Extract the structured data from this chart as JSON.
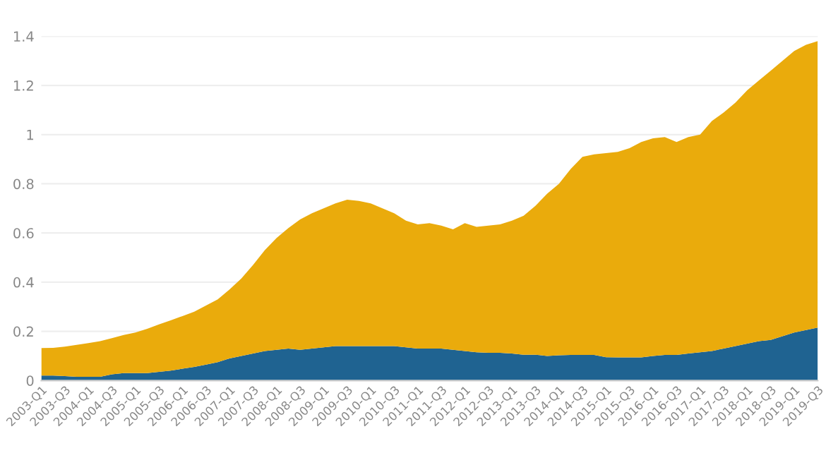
{
  "chart_data": {
    "type": "area",
    "stacked": true,
    "grid": "y",
    "categories": [
      "2003-Q1",
      null,
      "2003-Q3",
      null,
      "2004-Q1",
      null,
      "2004-Q3",
      null,
      "2005-Q1",
      null,
      "2005-Q3",
      null,
      "2006-Q1",
      null,
      "2006-Q3",
      null,
      "2007-Q1",
      null,
      "2007-Q3",
      null,
      "2008-Q1",
      null,
      "2008-Q3",
      null,
      "2009-Q1",
      null,
      "2009-Q3",
      null,
      "2010-Q1",
      null,
      "2010-Q3",
      null,
      "2011-Q1",
      null,
      "2011-Q3",
      null,
      "2012-Q1",
      null,
      "2012-Q3",
      null,
      "2013-Q1",
      null,
      "2013-Q3",
      null,
      "2014-Q1",
      null,
      "2014-Q3",
      null,
      "2015-Q1",
      null,
      "2015-Q3",
      null,
      "2016-Q1",
      null,
      "2016-Q3",
      null,
      "2017-Q1",
      null,
      "2017-Q3",
      null,
      "2018-Q1",
      null,
      "2018-Q3",
      null,
      "2019-Q1",
      null,
      "2019-Q3"
    ],
    "ylim": [
      0,
      1.4
    ],
    "yticks": [
      0,
      0.2,
      0.4,
      0.6,
      0.8,
      1,
      1.2,
      1.4
    ],
    "series": [
      {
        "color": "#1f6391",
        "values": [
          0.02,
          0.02,
          0.018,
          0.015,
          0.015,
          0.015,
          0.025,
          0.03,
          0.03,
          0.03,
          0.035,
          0.04,
          0.048,
          0.055,
          0.065,
          0.075,
          0.09,
          0.1,
          0.11,
          0.12,
          0.125,
          0.13,
          0.125,
          0.13,
          0.135,
          0.14,
          0.14,
          0.14,
          0.14,
          0.14,
          0.14,
          0.135,
          0.13,
          0.13,
          0.13,
          0.125,
          0.12,
          0.115,
          0.113,
          0.113,
          0.11,
          0.105,
          0.105,
          0.1,
          0.103,
          0.104,
          0.104,
          0.104,
          0.095,
          0.094,
          0.094,
          0.094,
          0.1,
          0.104,
          0.104,
          0.11,
          0.115,
          0.12,
          0.13,
          0.14,
          0.15,
          0.16,
          0.165,
          0.18,
          0.195,
          0.205,
          0.215
        ]
      },
      {
        "color": "#eaab0c",
        "values": [
          0.112,
          0.113,
          0.12,
          0.13,
          0.137,
          0.145,
          0.147,
          0.155,
          0.165,
          0.18,
          0.193,
          0.205,
          0.214,
          0.225,
          0.24,
          0.255,
          0.28,
          0.315,
          0.36,
          0.41,
          0.455,
          0.49,
          0.53,
          0.55,
          0.565,
          0.58,
          0.595,
          0.59,
          0.58,
          0.56,
          0.54,
          0.515,
          0.505,
          0.51,
          0.5,
          0.49,
          0.52,
          0.51,
          0.517,
          0.522,
          0.54,
          0.565,
          0.605,
          0.66,
          0.697,
          0.756,
          0.806,
          0.816,
          0.83,
          0.836,
          0.851,
          0.876,
          0.885,
          0.886,
          0.866,
          0.88,
          0.885,
          0.935,
          0.96,
          0.99,
          1.03,
          1.06,
          1.095,
          1.12,
          1.145,
          1.16,
          1.165
        ]
      }
    ]
  }
}
